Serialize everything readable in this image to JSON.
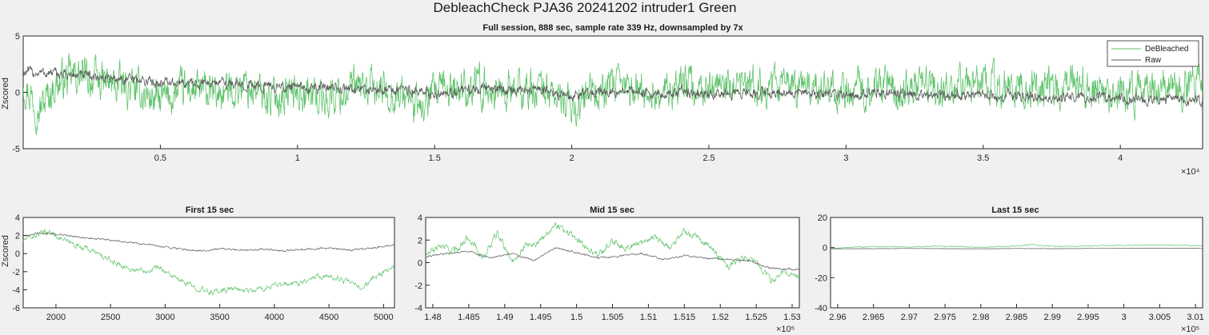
{
  "figure": {
    "title": "DebleachCheck PJA36 20241202  intruder1 Green"
  },
  "colors": {
    "debleached": "#5fc36b",
    "raw": "#5a5a5a",
    "axes_bg": "#ffffff",
    "figure_bg": "#f0f0f0"
  },
  "chart_data": [
    {
      "id": "full",
      "type": "line",
      "title": "Full session, 888 sec, sample rate 339 Hz, downsampled by 7x",
      "ylabel": "Zscored",
      "xlabel": "",
      "xlim": [
        0,
        43000
      ],
      "ylim": [
        -5,
        5
      ],
      "xticks": [
        5000,
        10000,
        15000,
        20000,
        25000,
        30000,
        35000,
        40000
      ],
      "xticklabels": [
        "0.5",
        "1",
        "1.5",
        "2",
        "2.5",
        "3",
        "3.5",
        "4"
      ],
      "yticks": [
        -5,
        0,
        5
      ],
      "yticklabels": [
        "-5",
        "0",
        "5"
      ],
      "x_exponent": "×10⁴",
      "legend": {
        "placement": "top-right",
        "entries": [
          "DeBleached",
          "Raw"
        ]
      },
      "series": [
        {
          "name": "DeBleached",
          "color": "#5fc36b",
          "x": [
            0,
            600,
            1200,
            2000,
            3000,
            4000,
            5000,
            6000,
            7000,
            8000,
            9000,
            10000,
            11000,
            12000,
            13000,
            14000,
            14500,
            15000,
            16000,
            17000,
            18000,
            19000,
            20000,
            21000,
            22000,
            23000,
            24000,
            25000,
            26000,
            27000,
            28000,
            29000,
            30000,
            31000,
            32000,
            33000,
            34000,
            35000,
            36000,
            37000,
            38000,
            39000,
            40000,
            41000,
            42000,
            43000
          ],
          "y": [
            1.0,
            -1.5,
            0.8,
            1.5,
            0.8,
            0.3,
            -0.8,
            0.4,
            -0.3,
            0.7,
            -0.5,
            0.2,
            -0.6,
            0.3,
            0.2,
            -0.4,
            -1.6,
            -0.2,
            0.6,
            0.3,
            0.1,
            0.4,
            -1.5,
            0.2,
            0.4,
            -0.3,
            0.6,
            0.3,
            0.1,
            0.8,
            0.4,
            0.6,
            0.2,
            0.5,
            0.3,
            0.6,
            0.4,
            0.7,
            0.5,
            0.3,
            0.8,
            0.6,
            -0.4,
            0.6,
            0.5,
            0.9
          ],
          "amp": 1.7
        },
        {
          "name": "Raw",
          "color": "#5a5a5a",
          "x": [
            0,
            1000,
            2000,
            3000,
            4000,
            5000,
            6000,
            7000,
            8000,
            9000,
            10000,
            11000,
            12000,
            13000,
            14000,
            15000,
            16000,
            17000,
            18000,
            19000,
            20000,
            21000,
            22000,
            23000,
            24000,
            25000,
            26000,
            27000,
            28000,
            29000,
            30000,
            31000,
            32000,
            33000,
            34000,
            35000,
            36000,
            37000,
            38000,
            39000,
            40000,
            41000,
            42000,
            43000
          ],
          "y": [
            1.8,
            1.7,
            1.5,
            1.3,
            1.1,
            0.9,
            0.8,
            0.9,
            0.7,
            0.5,
            0.4,
            0.4,
            0.3,
            0.3,
            0.2,
            -0.1,
            0.2,
            0.3,
            0.1,
            0.1,
            -0.4,
            0.1,
            0.1,
            -0.1,
            0.0,
            -0.1,
            -0.2,
            -0.1,
            -0.1,
            -0.3,
            -0.2,
            -0.1,
            -0.1,
            -0.3,
            -0.3,
            -0.2,
            -0.3,
            -0.4,
            -0.4,
            -0.4,
            -0.5,
            -0.6,
            -0.6,
            -0.7
          ],
          "amp": 0.45
        }
      ]
    },
    {
      "id": "first",
      "type": "line",
      "title": "First 15 sec",
      "ylabel": "Zscored",
      "xlabel": "",
      "xlim": [
        1700,
        5100
      ],
      "ylim": [
        -6,
        4
      ],
      "xticks": [
        2000,
        2500,
        3000,
        3500,
        4000,
        4500,
        5000
      ],
      "xticklabels": [
        "2000",
        "2500",
        "3000",
        "3500",
        "4000",
        "4500",
        "5000"
      ],
      "yticks": [
        -6,
        -4,
        -2,
        0,
        2,
        4
      ],
      "yticklabels": [
        "-6",
        "-4",
        "-2",
        "0",
        "2",
        "4"
      ],
      "x_exponent": "",
      "series": [
        {
          "name": "DeBleached",
          "color": "#5fc36b",
          "x": [
            1700,
            1850,
            1950,
            2100,
            2300,
            2500,
            2700,
            2850,
            2950,
            3100,
            3250,
            3400,
            3600,
            3800,
            4000,
            4200,
            4400,
            4600,
            4700,
            4800,
            4900,
            5000,
            5100
          ],
          "y": [
            1.5,
            2.2,
            2.4,
            1.3,
            0.5,
            -0.8,
            -1.8,
            -1.8,
            -1.5,
            -2.8,
            -3.6,
            -4.3,
            -3.9,
            -4.1,
            -3.6,
            -3.3,
            -2.4,
            -2.8,
            -3.3,
            -3.8,
            -2.8,
            -2.0,
            -1.6
          ],
          "amp": 0.3
        },
        {
          "name": "Raw",
          "color": "#5a5a5a",
          "x": [
            1700,
            1900,
            2100,
            2300,
            2500,
            2700,
            2900,
            3100,
            3300,
            3500,
            3700,
            3900,
            4100,
            4300,
            4500,
            4700,
            4900,
            5100
          ],
          "y": [
            2.0,
            2.3,
            2.0,
            1.7,
            1.5,
            1.2,
            0.9,
            0.6,
            0.3,
            0.5,
            0.4,
            0.5,
            0.3,
            0.5,
            0.6,
            0.4,
            0.6,
            1.0
          ],
          "amp": 0.1
        }
      ]
    },
    {
      "id": "mid",
      "type": "line",
      "title": "Mid 15 sec",
      "ylabel": "",
      "xlabel": "",
      "xlim": [
        147900,
        153100
      ],
      "ylim": [
        -4,
        4
      ],
      "xticks": [
        148000,
        148500,
        149000,
        149500,
        150000,
        150500,
        151000,
        151500,
        152000,
        152500,
        153000
      ],
      "xticklabels": [
        "1.48",
        "1.485",
        "1.49",
        "1.495",
        "1.5",
        "1.505",
        "1.51",
        "1.515",
        "1.52",
        "1.525",
        "1.53"
      ],
      "yticks": [
        -4,
        -2,
        0,
        2,
        4
      ],
      "yticklabels": [
        "-4",
        "-2",
        "0",
        "2",
        "4"
      ],
      "x_exponent": "×10⁵",
      "series": [
        {
          "name": "DeBleached",
          "color": "#5fc36b",
          "x": [
            147900,
            148100,
            148300,
            148500,
            148700,
            148900,
            149100,
            149300,
            149500,
            149700,
            149900,
            150100,
            150300,
            150500,
            150700,
            150900,
            151100,
            151300,
            151500,
            151700,
            151900,
            152100,
            152300,
            152500,
            152700,
            152900,
            153100
          ],
          "y": [
            0.6,
            1.5,
            1.0,
            2.3,
            0.4,
            2.6,
            0.1,
            1.6,
            1.8,
            3.5,
            2.6,
            1.6,
            0.6,
            2.0,
            1.3,
            1.8,
            2.4,
            1.2,
            2.8,
            2.1,
            1.2,
            -0.4,
            0.4,
            0.1,
            -1.6,
            -0.8,
            -1.2
          ],
          "amp": 0.3
        },
        {
          "name": "Raw",
          "color": "#5a5a5a",
          "x": [
            147900,
            148200,
            148500,
            148800,
            149100,
            149400,
            149700,
            150000,
            150300,
            150600,
            150900,
            151200,
            151500,
            151800,
            152100,
            152400,
            152700,
            153100
          ],
          "y": [
            0.5,
            0.8,
            1.0,
            0.4,
            0.8,
            0.2,
            1.3,
            0.9,
            0.4,
            0.6,
            0.8,
            0.3,
            0.6,
            0.4,
            0.3,
            0.2,
            -0.5,
            -0.6
          ],
          "amp": 0.08
        }
      ]
    },
    {
      "id": "last",
      "type": "line",
      "title": "Last 15 sec",
      "ylabel": "",
      "xlabel": "",
      "xlim": [
        295900,
        301100
      ],
      "ylim": [
        -40,
        20
      ],
      "xticks": [
        296000,
        296500,
        297000,
        297500,
        298000,
        298500,
        299000,
        299500,
        300000,
        300500,
        301000
      ],
      "xticklabels": [
        "2.96",
        "2.965",
        "2.97",
        "2.975",
        "2.98",
        "2.985",
        "2.99",
        "2.995",
        "3",
        "3.005",
        "3.01"
      ],
      "yticks": [
        -40,
        -20,
        0,
        20
      ],
      "yticklabels": [
        "-40",
        "-20",
        "0",
        "20"
      ],
      "x_exponent": "×10⁵",
      "series": [
        {
          "name": "DeBleached",
          "color": "#5fc36b",
          "x": [
            295900,
            296500,
            297000,
            297500,
            298000,
            298500,
            298700,
            299000,
            299500,
            300000,
            300500,
            301100
          ],
          "y": [
            -0.5,
            0.8,
            0.5,
            1.0,
            0.2,
            1.0,
            2.0,
            0.8,
            1.0,
            1.5,
            1.8,
            1.2
          ],
          "amp": 0.3
        },
        {
          "name": "Raw",
          "color": "#5a5a5a",
          "x": [
            295900,
            296500,
            297000,
            297500,
            298000,
            298500,
            299000,
            299500,
            300000,
            300500,
            301100
          ],
          "y": [
            -0.8,
            -0.7,
            -0.6,
            -0.7,
            -0.8,
            -0.6,
            -0.7,
            -0.6,
            -0.5,
            -0.4,
            -0.5
          ],
          "amp": 0.1
        }
      ]
    }
  ]
}
